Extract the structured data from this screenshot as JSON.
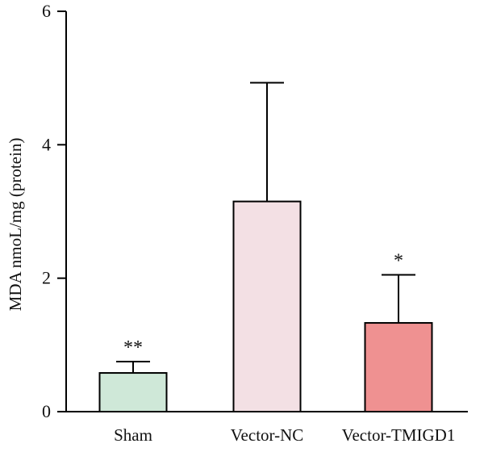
{
  "chart_data": {
    "type": "bar",
    "title": "",
    "xlabel": "",
    "ylabel": "MDA nmoL/mg (protein)",
    "ylim": [
      0,
      6
    ],
    "yticks": [
      0,
      2,
      4,
      6
    ],
    "grid": false,
    "legend": "none",
    "categories": [
      "Sham",
      "Vector-NC",
      "Vector-TMIGD1"
    ],
    "values": [
      0.58,
      3.15,
      1.33
    ],
    "error_upper": [
      0.17,
      1.78,
      0.72
    ],
    "annotations": [
      "**",
      "",
      "*"
    ],
    "colors": [
      "#cfe8d8",
      "#f3e0e4",
      "#ef9191"
    ]
  }
}
